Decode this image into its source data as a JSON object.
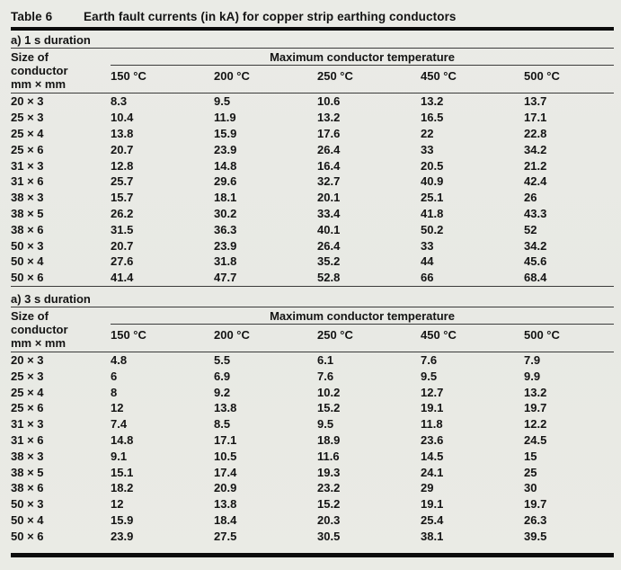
{
  "title": {
    "label": "Table 6",
    "text": "Earth fault currents (in kA) for copper strip earthing conductors"
  },
  "header": {
    "size_lines": [
      "Size of",
      "conductor",
      "mm × mm"
    ],
    "temp_group": "Maximum conductor temperature",
    "temps": [
      "150 °C",
      "200 °C",
      "250 °C",
      "450 °C",
      "500 °C"
    ]
  },
  "sections": [
    {
      "duration_label": "a) 1 s duration",
      "rows": [
        {
          "size": "20 × 3",
          "values": [
            "8.3",
            "9.5",
            "10.6",
            "13.2",
            "13.7"
          ]
        },
        {
          "size": "25 × 3",
          "values": [
            "10.4",
            "11.9",
            "13.2",
            "16.5",
            "17.1"
          ]
        },
        {
          "size": "25 × 4",
          "values": [
            "13.8",
            "15.9",
            "17.6",
            "22",
            "22.8"
          ]
        },
        {
          "size": "25 × 6",
          "values": [
            "20.7",
            "23.9",
            "26.4",
            "33",
            "34.2"
          ]
        },
        {
          "size": "31 × 3",
          "values": [
            "12.8",
            "14.8",
            "16.4",
            "20.5",
            "21.2"
          ]
        },
        {
          "size": "31 × 6",
          "values": [
            "25.7",
            "29.6",
            "32.7",
            "40.9",
            "42.4"
          ]
        },
        {
          "size": "38 × 3",
          "values": [
            "15.7",
            "18.1",
            "20.1",
            "25.1",
            "26"
          ]
        },
        {
          "size": "38 × 5",
          "values": [
            "26.2",
            "30.2",
            "33.4",
            "41.8",
            "43.3"
          ]
        },
        {
          "size": "38 × 6",
          "values": [
            "31.5",
            "36.3",
            "40.1",
            "50.2",
            "52"
          ]
        },
        {
          "size": "50 × 3",
          "values": [
            "20.7",
            "23.9",
            "26.4",
            "33",
            "34.2"
          ]
        },
        {
          "size": "50 × 4",
          "values": [
            "27.6",
            "31.8",
            "35.2",
            "44",
            "45.6"
          ]
        },
        {
          "size": "50 × 6",
          "values": [
            "41.4",
            "47.7",
            "52.8",
            "66",
            "68.4"
          ]
        }
      ]
    },
    {
      "duration_label": "a) 3 s duration",
      "rows": [
        {
          "size": "20 × 3",
          "values": [
            "4.8",
            "5.5",
            "6.1",
            "7.6",
            "7.9"
          ]
        },
        {
          "size": "25 × 3",
          "values": [
            "6",
            "6.9",
            "7.6",
            "9.5",
            "9.9"
          ]
        },
        {
          "size": "25 × 4",
          "values": [
            "8",
            "9.2",
            "10.2",
            "12.7",
            "13.2"
          ]
        },
        {
          "size": "25 × 6",
          "values": [
            "12",
            "13.8",
            "15.2",
            "19.1",
            "19.7"
          ]
        },
        {
          "size": "31 × 3",
          "values": [
            "7.4",
            "8.5",
            "9.5",
            "11.8",
            "12.2"
          ]
        },
        {
          "size": "31 × 6",
          "values": [
            "14.8",
            "17.1",
            "18.9",
            "23.6",
            "24.5"
          ]
        },
        {
          "size": "38 × 3",
          "values": [
            "9.1",
            "10.5",
            "11.6",
            "14.5",
            "15"
          ]
        },
        {
          "size": "38 × 5",
          "values": [
            "15.1",
            "17.4",
            "19.3",
            "24.1",
            "25"
          ]
        },
        {
          "size": "38 × 6",
          "values": [
            "18.2",
            "20.9",
            "23.2",
            "29",
            "30"
          ]
        },
        {
          "size": "50 × 3",
          "values": [
            "12",
            "13.8",
            "15.2",
            "19.1",
            "19.7"
          ]
        },
        {
          "size": "50 × 4",
          "values": [
            "15.9",
            "18.4",
            "20.3",
            "25.4",
            "26.3"
          ]
        },
        {
          "size": "50 × 6",
          "values": [
            "23.9",
            "27.5",
            "30.5",
            "38.1",
            "39.5"
          ]
        }
      ]
    }
  ],
  "colors": {
    "background": "#e9eae5",
    "text": "#141414",
    "rule_thin": "#3b3b3b",
    "rule_thick": "#0c0c0c"
  }
}
